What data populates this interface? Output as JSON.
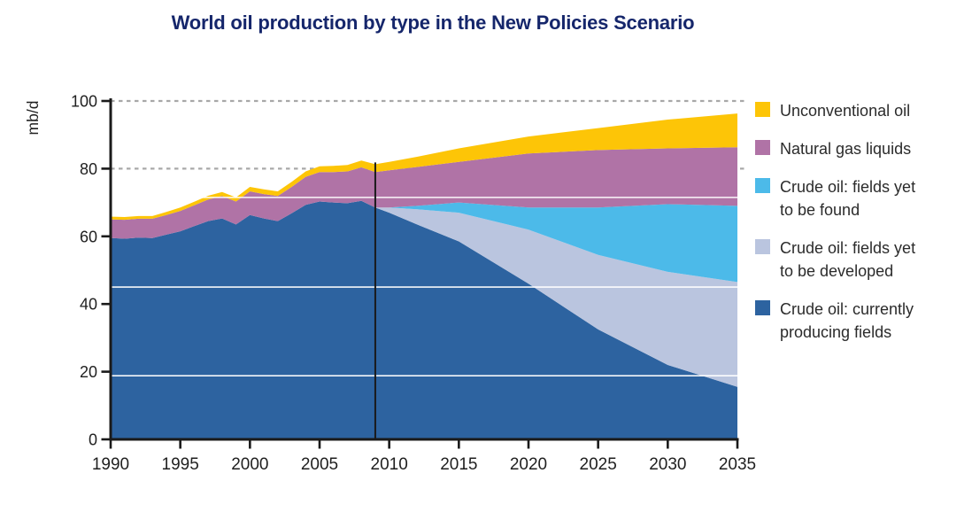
{
  "title": "World oil production by type in the New Policies Scenario",
  "colors": {
    "title": "#15266B",
    "axis": "#1A1A1A",
    "tick_label": "#1F1F1F",
    "dotted_grid": "#A8A8A8",
    "white_grid": "#FFFFFF",
    "marker_line": "#1A1A1A",
    "crude_currently_producing": "#2D63A0",
    "crude_to_be_developed": "#BAC5DF",
    "crude_to_be_found": "#4CBAE9",
    "natural_gas_liquids": "#B073A6",
    "unconventional_oil": "#FDC507"
  },
  "legend": {
    "items": [
      {
        "key": "unconventional-oil",
        "color": "#FDC507",
        "label_lines": [
          "Unconventional oil"
        ]
      },
      {
        "key": "natural-gas-liquids",
        "color": "#B073A6",
        "label_lines": [
          "Natural gas liquids"
        ]
      },
      {
        "key": "crude-to-be-found",
        "color": "#4CBAE9",
        "label_lines": [
          "Crude oil: fields yet",
          "to be found"
        ]
      },
      {
        "key": "crude-to-be-developed",
        "color": "#BAC5DF",
        "label_lines": [
          "Crude oil: fields yet",
          "to be developed"
        ]
      },
      {
        "key": "crude-currently-producing",
        "color": "#2D63A0",
        "label_lines": [
          "Crude oil: currently",
          "producing fields"
        ]
      }
    ]
  },
  "chart_data": {
    "type": "area",
    "stacked": true,
    "title": "World oil production by type in the New Policies Scenario",
    "ylabel": "mb/d",
    "xlim": [
      1990,
      2035
    ],
    "ylim": [
      0,
      100
    ],
    "x_ticks": [
      1990,
      1995,
      2000,
      2005,
      2010,
      2015,
      2020,
      2025,
      2030,
      2035
    ],
    "y_ticks": [
      0,
      20,
      40,
      60,
      80,
      100
    ],
    "dotted_gridlines_at": [
      80,
      100
    ],
    "white_gridlines_at": [
      18.8,
      45.0,
      71.5
    ],
    "marker_year": 2009,
    "x": [
      1990,
      1991,
      1992,
      1993,
      1994,
      1995,
      1996,
      1997,
      1998,
      1999,
      2000,
      2001,
      2002,
      2003,
      2004,
      2005,
      2006,
      2007,
      2008,
      2009,
      2010,
      2012,
      2015,
      2020,
      2025,
      2030,
      2035
    ],
    "series": [
      {
        "key": "crude-currently-producing",
        "name": "Crude oil: currently producing fields",
        "color": "#2D63A0",
        "values": [
          59.5,
          59.3,
          59.6,
          59.5,
          60.5,
          61.5,
          63.0,
          64.5,
          65.3,
          63.5,
          66.3,
          65.3,
          64.5,
          66.8,
          69.3,
          70.3,
          70.0,
          69.8,
          70.5,
          68.5,
          67.0,
          63.5,
          58.5,
          46.0,
          32.5,
          22.0,
          15.5
        ]
      },
      {
        "key": "crude-to-be-developed",
        "name": "Crude oil: fields yet to be developed",
        "color": "#BAC5DF",
        "values": [
          0,
          0,
          0,
          0,
          0,
          0,
          0,
          0,
          0,
          0,
          0,
          0,
          0,
          0,
          0,
          0,
          0,
          0,
          0,
          0,
          1.5,
          4.5,
          8.5,
          16.0,
          22.0,
          27.5,
          31.0
        ]
      },
      {
        "key": "crude-to-be-found",
        "name": "Crude oil: fields yet to be found",
        "color": "#4CBAE9",
        "values": [
          0,
          0,
          0,
          0,
          0,
          0,
          0,
          0,
          0,
          0,
          0,
          0,
          0,
          0,
          0,
          0,
          0,
          0,
          0,
          0,
          0,
          1.0,
          3.0,
          6.5,
          14.0,
          20.0,
          22.5
        ]
      },
      {
        "key": "natural-gas-liquids",
        "name": "Natural gas liquids",
        "color": "#B073A6",
        "values": [
          5.5,
          5.6,
          5.6,
          5.7,
          5.8,
          6.0,
          6.2,
          6.4,
          6.6,
          6.8,
          7.0,
          7.2,
          7.4,
          7.8,
          8.3,
          8.7,
          9.0,
          9.4,
          9.9,
          10.5,
          11.0,
          11.5,
          12.0,
          16.0,
          17.0,
          16.5,
          17.3
        ]
      },
      {
        "key": "unconventional-oil",
        "name": "Unconventional oil",
        "color": "#FDC507",
        "values": [
          0.8,
          0.8,
          0.8,
          0.8,
          0.9,
          1.0,
          1.0,
          1.1,
          1.2,
          1.2,
          1.3,
          1.4,
          1.4,
          1.5,
          1.6,
          1.7,
          1.8,
          1.9,
          2.0,
          2.3,
          2.5,
          3.0,
          4.0,
          5.0,
          6.5,
          8.5,
          10.0
        ]
      }
    ]
  }
}
